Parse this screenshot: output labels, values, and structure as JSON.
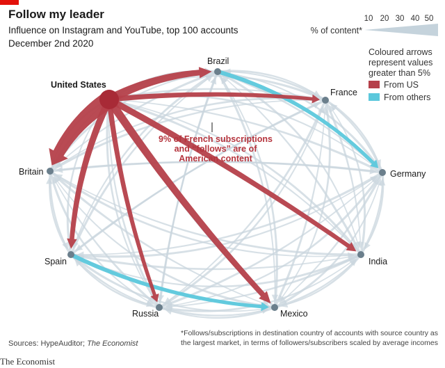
{
  "header": {
    "title": "Follow my leader",
    "subtitle": "Influence on Instagram and YouTube, top 100 accounts",
    "date": "December 2nd 2020"
  },
  "legend": {
    "scale_label": "% of content*",
    "scale_ticks": [
      "10",
      "20",
      "30",
      "40",
      "50"
    ],
    "description": [
      "Coloured arrows",
      "represent values",
      "greater than 5%"
    ],
    "from_us": "From US",
    "from_others": "From others"
  },
  "annotation": [
    "9% of French subscriptions",
    "and “follows” are of",
    "American content"
  ],
  "footer": {
    "sources": "Sources: HypeAuditor; ",
    "sources_italic": "The Economist",
    "footnote": "*Follows/subscriptions in destination country of accounts with source country as the largest market, in terms of followers/subscribers scaled by average incomes",
    "brand": "The Economist"
  },
  "colors": {
    "us": "#b5404a",
    "others": "#5cc8dc",
    "grey": "#c9d6dd",
    "node": "#6b7f8c",
    "us_node": "#a82a36"
  },
  "chart_data": {
    "type": "network",
    "title": "Follow my leader",
    "measure": "% of content",
    "threshold_for_colour": 5,
    "nodes": [
      "United States",
      "Brazil",
      "France",
      "Germany",
      "India",
      "Mexico",
      "Russia",
      "Spain",
      "Britain"
    ],
    "highlighted_flows": [
      {
        "from": "United States",
        "to": "Britain",
        "value": 30,
        "group": "From US"
      },
      {
        "from": "United States",
        "to": "Brazil",
        "value": 15,
        "group": "From US"
      },
      {
        "from": "United States",
        "to": "France",
        "value": 9,
        "group": "From US"
      },
      {
        "from": "United States",
        "to": "Spain",
        "value": 12,
        "group": "From US"
      },
      {
        "from": "United States",
        "to": "Russia",
        "value": 9,
        "group": "From US"
      },
      {
        "from": "United States",
        "to": "Mexico",
        "value": 14,
        "group": "From US"
      },
      {
        "from": "United States",
        "to": "India",
        "value": 11,
        "group": "From US"
      },
      {
        "from": "Brazil",
        "to": "Germany",
        "value": 6,
        "group": "From others"
      },
      {
        "from": "Spain",
        "to": "Mexico",
        "value": 7,
        "group": "From others"
      }
    ]
  }
}
